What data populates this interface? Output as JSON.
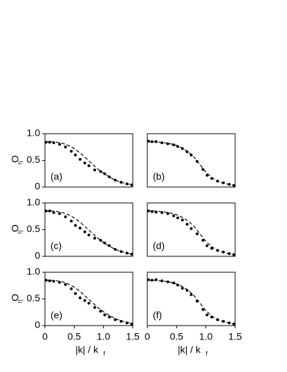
{
  "chart_data": [
    {
      "type": "scatter",
      "panel_label": "(a)",
      "color": "#000000",
      "ylabel": "O",
      "ylabel_subscript": "η",
      "x": [
        0.02,
        0.08,
        0.15,
        0.25,
        0.35,
        0.45,
        0.52,
        0.6,
        0.68,
        0.75,
        0.85,
        0.95,
        1.02,
        1.1,
        1.2,
        1.3,
        1.4,
        1.48
      ],
      "values": [
        0.84,
        0.84,
        0.83,
        0.8,
        0.75,
        0.67,
        0.6,
        0.52,
        0.45,
        0.4,
        0.32,
        0.29,
        0.25,
        0.19,
        0.13,
        0.09,
        0.06,
        0.04
      ],
      "fit": {
        "style": "dashed",
        "x": [
          0,
          0.1,
          0.2,
          0.3,
          0.4,
          0.5,
          0.6,
          0.7,
          0.8,
          0.9,
          1.0,
          1.1,
          1.2,
          1.3,
          1.4,
          1.5
        ],
        "values": [
          0.85,
          0.85,
          0.84,
          0.82,
          0.78,
          0.72,
          0.64,
          0.54,
          0.44,
          0.34,
          0.26,
          0.19,
          0.13,
          0.09,
          0.06,
          0.04
        ]
      },
      "xlim": [
        0,
        1.5
      ],
      "ylim": [
        0,
        1
      ],
      "yticks": [
        0,
        0.5,
        {
          "value": 1,
          "label": "1.0"
        }
      ]
    },
    {
      "type": "scatter",
      "panel_label": "(b)",
      "color": "#000000",
      "x": [
        0.02,
        0.08,
        0.15,
        0.25,
        0.35,
        0.45,
        0.52,
        0.6,
        0.68,
        0.75,
        0.85,
        0.95,
        1.02,
        1.1,
        1.2,
        1.3,
        1.4,
        1.48
      ],
      "values": [
        0.86,
        0.85,
        0.85,
        0.83,
        0.81,
        0.79,
        0.76,
        0.72,
        0.66,
        0.6,
        0.48,
        0.33,
        0.22,
        0.16,
        0.11,
        0.08,
        0.05,
        0.03
      ],
      "fit": {
        "style": "dashed",
        "x": [
          0,
          0.1,
          0.2,
          0.3,
          0.4,
          0.5,
          0.6,
          0.7,
          0.8,
          0.9,
          1.0,
          1.1,
          1.2,
          1.3,
          1.4,
          1.5
        ],
        "values": [
          0.85,
          0.85,
          0.84,
          0.83,
          0.81,
          0.78,
          0.73,
          0.66,
          0.56,
          0.42,
          0.28,
          0.18,
          0.11,
          0.07,
          0.05,
          0.03
        ]
      },
      "xlim": [
        0,
        1.5
      ],
      "ylim": [
        0,
        1
      ]
    },
    {
      "type": "scatter",
      "panel_label": "(c)",
      "color": "#000000",
      "ylabel": "O",
      "ylabel_subscript": "η",
      "x": [
        0.02,
        0.08,
        0.15,
        0.25,
        0.35,
        0.45,
        0.52,
        0.6,
        0.68,
        0.75,
        0.85,
        0.95,
        1.02,
        1.1,
        1.2,
        1.3,
        1.4,
        1.48
      ],
      "values": [
        0.85,
        0.85,
        0.82,
        0.8,
        0.74,
        0.66,
        0.58,
        0.53,
        0.46,
        0.4,
        0.34,
        0.3,
        0.25,
        0.2,
        0.13,
        0.09,
        0.06,
        0.04
      ],
      "fit": {
        "style": "dashed",
        "x": [
          0,
          0.1,
          0.2,
          0.3,
          0.4,
          0.5,
          0.6,
          0.7,
          0.8,
          0.9,
          1.0,
          1.1,
          1.2,
          1.3,
          1.4,
          1.5
        ],
        "values": [
          0.85,
          0.85,
          0.84,
          0.82,
          0.78,
          0.72,
          0.64,
          0.54,
          0.44,
          0.34,
          0.26,
          0.19,
          0.13,
          0.09,
          0.06,
          0.04
        ]
      },
      "xlim": [
        0,
        1.5
      ],
      "ylim": [
        0,
        1
      ],
      "yticks": [
        0,
        0.5,
        {
          "value": 1,
          "label": "1.0"
        }
      ]
    },
    {
      "type": "scatter",
      "panel_label": "(d)",
      "color": "#000000",
      "x": [
        0.02,
        0.08,
        0.15,
        0.25,
        0.35,
        0.45,
        0.52,
        0.6,
        0.68,
        0.75,
        0.85,
        0.95,
        1.02,
        1.1,
        1.2,
        1.3,
        1.4,
        1.48
      ],
      "values": [
        0.85,
        0.84,
        0.83,
        0.82,
        0.8,
        0.76,
        0.72,
        0.68,
        0.6,
        0.52,
        0.42,
        0.3,
        0.2,
        0.15,
        0.11,
        0.08,
        0.05,
        0.03
      ],
      "fit": {
        "style": "dashed",
        "x": [
          0,
          0.1,
          0.2,
          0.3,
          0.4,
          0.5,
          0.6,
          0.7,
          0.8,
          0.9,
          1.0,
          1.1,
          1.2,
          1.3,
          1.4,
          1.5
        ],
        "values": [
          0.85,
          0.85,
          0.84,
          0.83,
          0.81,
          0.78,
          0.73,
          0.66,
          0.56,
          0.42,
          0.28,
          0.18,
          0.11,
          0.07,
          0.05,
          0.03
        ]
      },
      "xlim": [
        0,
        1.5
      ],
      "ylim": [
        0,
        1
      ]
    },
    {
      "type": "scatter",
      "panel_label": "(e)",
      "color": "#000000",
      "ylabel": "O",
      "ylabel_subscript": "η",
      "xlabel": "|k| / k",
      "xlabel_subscript": "f",
      "x": [
        0.02,
        0.08,
        0.15,
        0.25,
        0.35,
        0.45,
        0.52,
        0.6,
        0.68,
        0.75,
        0.85,
        0.95,
        1.02,
        1.1,
        1.2,
        1.3,
        1.4,
        1.48
      ],
      "values": [
        0.85,
        0.84,
        0.83,
        0.81,
        0.77,
        0.69,
        0.6,
        0.52,
        0.47,
        0.42,
        0.34,
        0.27,
        0.2,
        0.16,
        0.11,
        0.08,
        0.05,
        0.03
      ],
      "fit": {
        "style": "dashed",
        "x": [
          0,
          0.1,
          0.2,
          0.3,
          0.4,
          0.5,
          0.6,
          0.7,
          0.8,
          0.9,
          1.0,
          1.1,
          1.2,
          1.3,
          1.4,
          1.5
        ],
        "values": [
          0.85,
          0.85,
          0.84,
          0.82,
          0.78,
          0.72,
          0.64,
          0.54,
          0.44,
          0.34,
          0.26,
          0.19,
          0.13,
          0.09,
          0.06,
          0.04
        ]
      },
      "xlim": [
        0,
        1.5
      ],
      "ylim": [
        0,
        1
      ],
      "yticks": [
        0,
        0.5,
        {
          "value": 1,
          "label": "1.0"
        }
      ],
      "xticks": [
        0,
        0.5,
        {
          "value": 1,
          "label": "1.0"
        },
        1.5
      ]
    },
    {
      "type": "scatter",
      "panel_label": "(f)",
      "color": "#000000",
      "xlabel": "|k| / k",
      "xlabel_subscript": "f",
      "x": [
        0.02,
        0.08,
        0.15,
        0.25,
        0.35,
        0.45,
        0.52,
        0.6,
        0.68,
        0.75,
        0.85,
        0.95,
        1.02,
        1.1,
        1.2,
        1.3,
        1.4,
        1.48
      ],
      "values": [
        0.86,
        0.85,
        0.86,
        0.84,
        0.82,
        0.8,
        0.76,
        0.7,
        0.66,
        0.58,
        0.46,
        0.3,
        0.2,
        0.16,
        0.11,
        0.08,
        0.05,
        0.03
      ],
      "fit": {
        "style": "dashed",
        "x": [
          0,
          0.1,
          0.2,
          0.3,
          0.4,
          0.5,
          0.6,
          0.7,
          0.8,
          0.9,
          1.0,
          1.1,
          1.2,
          1.3,
          1.4,
          1.5
        ],
        "values": [
          0.85,
          0.85,
          0.84,
          0.83,
          0.81,
          0.78,
          0.73,
          0.66,
          0.56,
          0.42,
          0.28,
          0.18,
          0.11,
          0.07,
          0.05,
          0.03
        ]
      },
      "xlim": [
        0,
        1.5
      ],
      "ylim": [
        0,
        1
      ],
      "xticks": [
        0,
        0.5,
        {
          "value": 1,
          "label": "1.0"
        },
        1.5
      ]
    }
  ]
}
